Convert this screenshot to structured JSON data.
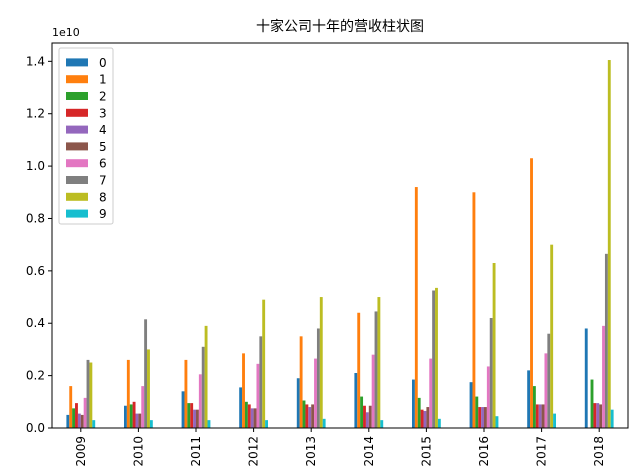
{
  "chart_data": {
    "type": "bar",
    "title": "十家公司十年的营收柱状图",
    "offset_label": "1e10",
    "xlabel": "",
    "ylabel": "",
    "ylim": [
      0,
      1.47
    ],
    "yticks": [
      "0.0",
      "0.2",
      "0.4",
      "0.6",
      "0.8",
      "1.0",
      "1.2",
      "1.4"
    ],
    "categories": [
      "2009",
      "2010",
      "2011",
      "2012",
      "2013",
      "2014",
      "2015",
      "2016",
      "2017",
      "2018"
    ],
    "grid": false,
    "legend_position": "top-left",
    "series": [
      {
        "name": "0",
        "color": "#1f77b4",
        "values": [
          0.05,
          0.085,
          0.14,
          0.155,
          0.19,
          0.21,
          0.185,
          0.175,
          0.22,
          0.38
        ]
      },
      {
        "name": "1",
        "color": "#ff7f0e",
        "values": [
          0.16,
          0.26,
          0.26,
          0.285,
          0.35,
          0.44,
          0.92,
          0.9,
          1.03,
          0.0
        ]
      },
      {
        "name": "2",
        "color": "#2ca02c",
        "values": [
          0.075,
          0.09,
          0.095,
          0.1,
          0.105,
          0.12,
          0.115,
          0.12,
          0.16,
          0.185
        ]
      },
      {
        "name": "3",
        "color": "#d62728",
        "values": [
          0.095,
          0.1,
          0.095,
          0.09,
          0.09,
          0.085,
          0.07,
          0.08,
          0.09,
          0.095
        ]
      },
      {
        "name": "4",
        "color": "#9467bd",
        "values": [
          0.055,
          0.055,
          0.07,
          0.075,
          0.08,
          0.06,
          0.065,
          0.08,
          0.09,
          0.095
        ]
      },
      {
        "name": "5",
        "color": "#8c564b",
        "values": [
          0.05,
          0.055,
          0.07,
          0.075,
          0.09,
          0.085,
          0.08,
          0.08,
          0.09,
          0.09
        ]
      },
      {
        "name": "6",
        "color": "#e377c2",
        "values": [
          0.115,
          0.16,
          0.205,
          0.245,
          0.265,
          0.28,
          0.265,
          0.235,
          0.285,
          0.39
        ]
      },
      {
        "name": "7",
        "color": "#7f7f7f",
        "values": [
          0.26,
          0.415,
          0.31,
          0.35,
          0.38,
          0.445,
          0.525,
          0.42,
          0.36,
          0.665
        ]
      },
      {
        "name": "8",
        "color": "#bcbd22",
        "values": [
          0.25,
          0.3,
          0.39,
          0.49,
          0.5,
          0.5,
          0.535,
          0.63,
          0.7,
          1.405
        ]
      },
      {
        "name": "9",
        "color": "#17becf",
        "values": [
          0.03,
          0.03,
          0.03,
          0.03,
          0.035,
          0.03,
          0.035,
          0.045,
          0.055,
          0.07
        ]
      }
    ]
  }
}
